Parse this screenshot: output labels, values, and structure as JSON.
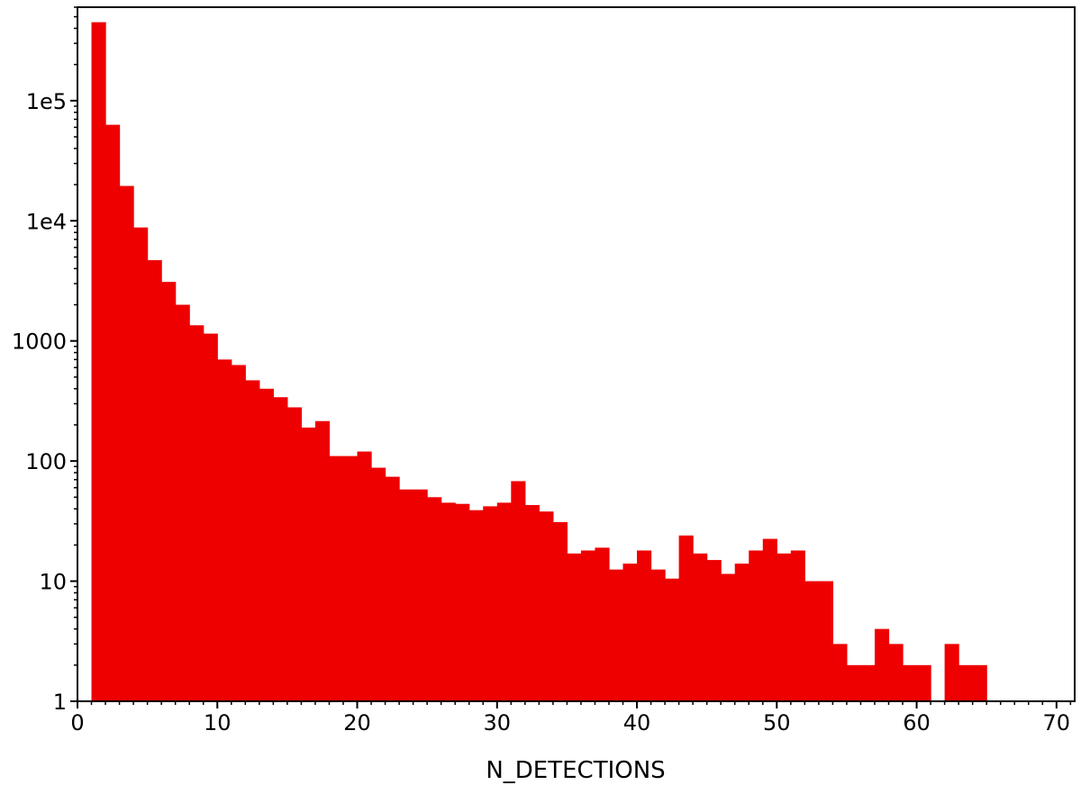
{
  "chart_data": {
    "type": "bar",
    "title": "",
    "xlabel": "N_DETECTIONS",
    "ylabel": "",
    "xlim": [
      0,
      71.3
    ],
    "ylim": [
      1,
      600000
    ],
    "yscale": "log",
    "bar_color": "#ee0000",
    "grid": false,
    "legend": "none",
    "bin_width": 1.0,
    "bin_starts": [
      1,
      2,
      3,
      4,
      5,
      6,
      7,
      8,
      9,
      10,
      11,
      12,
      13,
      14,
      15,
      16,
      17,
      18,
      19,
      20,
      21,
      22,
      23,
      24,
      25,
      26,
      27,
      28,
      29,
      30,
      31,
      32,
      33,
      34,
      35,
      36,
      37,
      38,
      39,
      40,
      41,
      42,
      43,
      44,
      45,
      46,
      47,
      48,
      49,
      50,
      51,
      52,
      53,
      54,
      55,
      56,
      57,
      58,
      59,
      60,
      61,
      62,
      63,
      64,
      65,
      66,
      67,
      68,
      69
    ],
    "values": [
      450000,
      63000,
      19500,
      8800,
      4700,
      3100,
      2000,
      1350,
      1150,
      700,
      630,
      470,
      400,
      340,
      280,
      190,
      215,
      110,
      110,
      120,
      88,
      74,
      58,
      58,
      50,
      45,
      44,
      39,
      42,
      45,
      68,
      43,
      38,
      31,
      17,
      18,
      19,
      12.5,
      14,
      18,
      12.5,
      10.5,
      24,
      17,
      15,
      11.5,
      14,
      18,
      22.5,
      17,
      18,
      10,
      10,
      3,
      2,
      2,
      4,
      3,
      2,
      2,
      1,
      3,
      2,
      2,
      1,
      1,
      1,
      1,
      1
    ],
    "x_ticks": [
      0,
      10,
      20,
      30,
      40,
      50,
      60,
      70
    ],
    "x_tick_labels": [
      "0",
      "10",
      "20",
      "30",
      "40",
      "50",
      "60",
      "70"
    ],
    "y_ticks": [
      1,
      10,
      100,
      1000,
      10000,
      100000
    ],
    "y_tick_labels": [
      "1",
      "10",
      "100",
      "1000",
      "1e4",
      "1e5"
    ]
  }
}
